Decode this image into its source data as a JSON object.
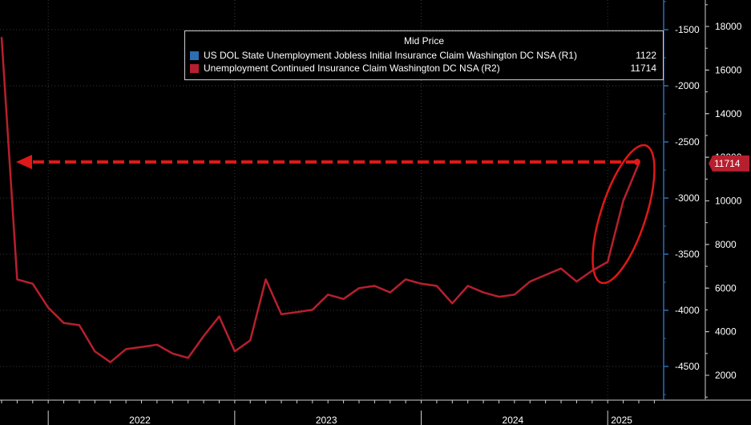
{
  "legend": {
    "title": "Mid Price",
    "series": [
      {
        "name": "US DOL State Unemployment Jobless Initial Insurance Claim Washington DC NSA  (R1)",
        "value": "1122",
        "color": "#2e6db4"
      },
      {
        "name": "Unemployment Continued Insurance Claim Washington DC NSA  (R2)",
        "value": "11714",
        "color": "#b81f2e"
      }
    ]
  },
  "last_value_tag": "11714",
  "colors": {
    "background": "#000000",
    "series_line": "#b81f2e",
    "annotation": "#e01818",
    "axis_r1": "#2e6db4",
    "axis_text": "#ffffff"
  },
  "chart_data": {
    "type": "line",
    "title": "",
    "x": [
      "2021-10",
      "2021-11",
      "2021-12",
      "2022-01",
      "2022-02",
      "2022-03",
      "2022-04",
      "2022-05",
      "2022-06",
      "2022-07",
      "2022-08",
      "2022-09",
      "2022-10",
      "2022-11",
      "2022-12",
      "2023-01",
      "2023-02",
      "2023-03",
      "2023-04",
      "2023-05",
      "2023-06",
      "2023-07",
      "2023-08",
      "2023-09",
      "2023-10",
      "2023-11",
      "2023-12",
      "2024-01",
      "2024-02",
      "2024-03",
      "2024-04",
      "2024-05",
      "2024-06",
      "2024-07",
      "2024-08",
      "2024-09",
      "2024-10",
      "2024-11",
      "2024-12",
      "2025-01",
      "2025-02",
      "2025-03"
    ],
    "series": [
      {
        "name": "Unemployment Continued Insurance Claim Washington DC NSA  (R2)",
        "axis": "right-outer",
        "values": [
          17500,
          6400,
          6200,
          5100,
          4400,
          4300,
          3100,
          2600,
          3200,
          3300,
          3400,
          3000,
          2800,
          3800,
          4700,
          3100,
          3600,
          6400,
          4800,
          4900,
          5000,
          5700,
          5500,
          6000,
          6100,
          5800,
          6400,
          6200,
          6100,
          5300,
          6100,
          5800,
          5600,
          5700,
          6300,
          6600,
          6900,
          6300,
          6800,
          7200,
          10000,
          11714
        ]
      }
    ],
    "axes": {
      "left_r1": {
        "range": [
          -4750,
          -1250
        ],
        "ticks": [
          -1500,
          -2000,
          -2500,
          -3000,
          -3500,
          -4000,
          -4500
        ]
      },
      "right_r2": {
        "range": [
          1000,
          19000
        ],
        "ticks": [
          18000,
          16000,
          14000,
          12000,
          10000,
          8000,
          6000,
          4000,
          2000
        ]
      }
    },
    "year_labels": [
      "2022",
      "2023",
      "2024",
      "2025"
    ],
    "grid": true,
    "legend_position": "top",
    "annotation": "dashed arrow from last value back to early 2022 level; circled recent rise"
  }
}
